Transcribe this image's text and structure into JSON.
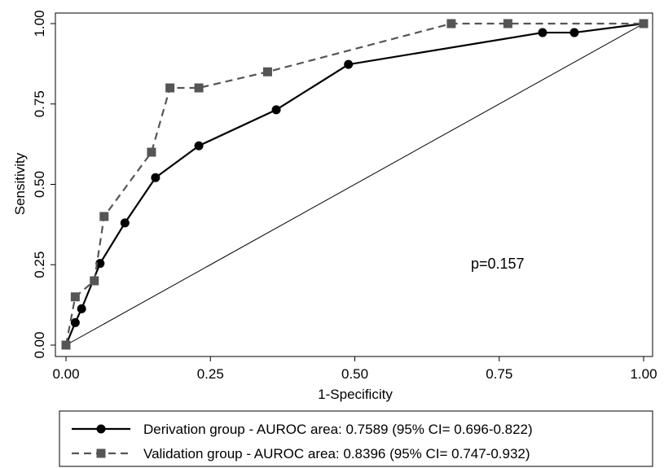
{
  "chart_data": {
    "type": "line",
    "xlabel": "1-Specificity",
    "ylabel": "Sensitivity",
    "xlim": [
      0,
      1
    ],
    "ylim": [
      0,
      1
    ],
    "xticks": [
      "0.00",
      "0.25",
      "0.50",
      "0.75",
      "1.00"
    ],
    "yticks": [
      "0.00",
      "0.25",
      "0.50",
      "0.75",
      "1.00"
    ],
    "grid": false,
    "reference_line": true,
    "legend_position": "bottom",
    "annotation": "p=0.157",
    "series": [
      {
        "name": "Derivation group - AUROC area: 0.7589 (95% CI= 0.696-0.822)",
        "style": "solid",
        "marker": "circle",
        "color": "#000000",
        "x": [
          0.0,
          0.016,
          0.027,
          0.059,
          0.102,
          0.155,
          0.23,
          0.364,
          0.489,
          0.825,
          0.88,
          1.0
        ],
        "y": [
          0.0,
          0.07,
          0.113,
          0.254,
          0.38,
          0.521,
          0.62,
          0.732,
          0.873,
          0.972,
          0.972,
          1.0
        ]
      },
      {
        "name": "Validation group -  AUROC area: 0.8396 (95% CI= 0.747-0.932)",
        "style": "dashed",
        "marker": "square",
        "color": "#555555",
        "x": [
          0.0,
          0.016,
          0.049,
          0.066,
          0.148,
          0.18,
          0.23,
          0.349,
          0.667,
          0.765,
          1.0
        ],
        "y": [
          0.0,
          0.15,
          0.2,
          0.4,
          0.6,
          0.8,
          0.8,
          0.85,
          1.0,
          1.0,
          1.0
        ]
      }
    ]
  }
}
